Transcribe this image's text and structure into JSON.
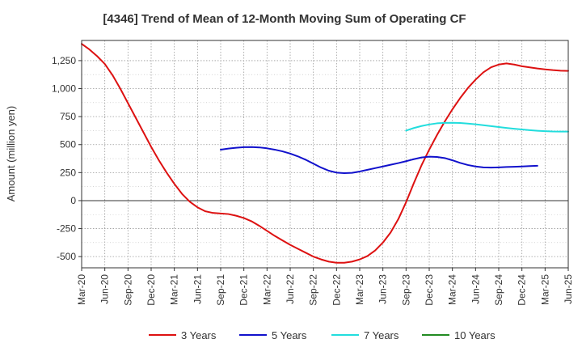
{
  "chart_data": {
    "type": "line",
    "title": "[4346]  Trend of Mean of 12-Month Moving Sum of Operating CF",
    "xlabel": "",
    "ylabel": "Amount (million yen)",
    "x_ticks": [
      "Mar-20",
      "Jun-20",
      "Sep-20",
      "Dec-20",
      "Mar-21",
      "Jun-21",
      "Sep-21",
      "Dec-21",
      "Mar-22",
      "Jun-22",
      "Sep-22",
      "Dec-22",
      "Mar-23",
      "Jun-23",
      "Sep-23",
      "Dec-23",
      "Mar-24",
      "Jun-24",
      "Sep-24",
      "Dec-24",
      "Mar-25",
      "Jun-25"
    ],
    "y_ticks": [
      -500,
      -250,
      0,
      250,
      500,
      750,
      1000,
      1250
    ],
    "y_tick_labels": [
      "-500",
      "-250",
      "0",
      "250",
      "500",
      "750",
      "1,000",
      "1,250"
    ],
    "ylim": [
      -600,
      1430
    ],
    "grid": true,
    "legend_position": "bottom",
    "series": [
      {
        "name": "3 Years",
        "color": "#dd1111",
        "start_index": 0,
        "values": [
          1400,
          1350,
          1290,
          1220,
          1120,
          1000,
          870,
          740,
          610,
          480,
          360,
          250,
          150,
          60,
          -10,
          -60,
          -95,
          -110,
          -115,
          -120,
          -135,
          -155,
          -185,
          -225,
          -270,
          -315,
          -355,
          -395,
          -430,
          -465,
          -500,
          -525,
          -545,
          -555,
          -555,
          -545,
          -525,
          -495,
          -445,
          -375,
          -285,
          -165,
          -15,
          155,
          315,
          455,
          585,
          705,
          815,
          915,
          1005,
          1080,
          1145,
          1190,
          1215,
          1225,
          1215,
          1200,
          1190,
          1180,
          1172,
          1165,
          1160,
          1158
        ]
      },
      {
        "name": "5 Years",
        "color": "#1111cc",
        "start_index": 18,
        "values": [
          455,
          465,
          472,
          477,
          478,
          475,
          467,
          455,
          440,
          420,
          395,
          365,
          330,
          295,
          267,
          250,
          245,
          248,
          260,
          275,
          290,
          305,
          320,
          335,
          352,
          370,
          385,
          392,
          390,
          380,
          360,
          337,
          318,
          305,
          297,
          295,
          297,
          300,
          302,
          305,
          308,
          311
        ]
      },
      {
        "name": "7 Years",
        "color": "#22dddd",
        "start_index": 42,
        "values": [
          625,
          648,
          666,
          680,
          690,
          694,
          695,
          693,
          688,
          681,
          673,
          665,
          657,
          649,
          642,
          635,
          629,
          624,
          620,
          617,
          616,
          616
        ]
      },
      {
        "name": "10 Years",
        "color": "#228b22",
        "start_index": 0,
        "values": []
      }
    ]
  }
}
